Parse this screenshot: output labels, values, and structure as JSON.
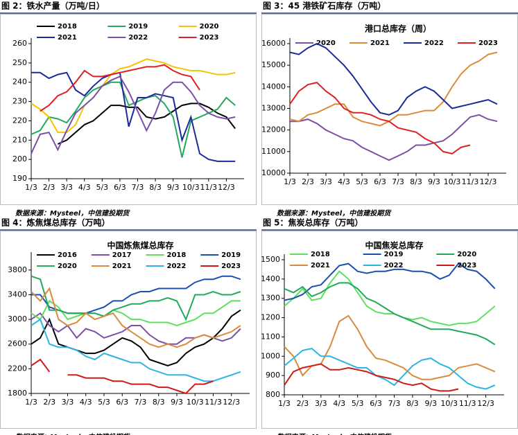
{
  "chart_data": [
    {
      "type": "line",
      "figure_label": "图 2：铁水产量（万吨/日）",
      "source": "数据来源：Mysteel，中信建投期货",
      "categories": [
        "1/3",
        null,
        "2/3",
        null,
        "3/3",
        null,
        "4/3",
        null,
        "5/3",
        null,
        "6/3",
        null,
        "7/3",
        null,
        "8/3",
        null,
        "9/3",
        null,
        "10/3",
        null,
        "11/3",
        null,
        "12/3",
        null
      ],
      "ylim": [
        190,
        260
      ],
      "yticks": [
        190,
        200,
        210,
        220,
        230,
        240,
        250,
        260
      ],
      "series": [
        {
          "name": "2018",
          "color": "#000000",
          "values": [
            null,
            null,
            null,
            208,
            210,
            214,
            218,
            220,
            224,
            228,
            228,
            227,
            227,
            222,
            221,
            222,
            225,
            228,
            229,
            229,
            227,
            224,
            222,
            216
          ]
        },
        {
          "name": "2019",
          "color": "#21a95c",
          "values": [
            213,
            215,
            222,
            221,
            219,
            225,
            232,
            236,
            238,
            240,
            240,
            228,
            230,
            232,
            233,
            229,
            222,
            201,
            220,
            222,
            224,
            226,
            232,
            228
          ]
        },
        {
          "name": "2020",
          "color": "#f5c400",
          "values": [
            229,
            226,
            222,
            214,
            214,
            218,
            228,
            232,
            238,
            244,
            247,
            248,
            250,
            252,
            251,
            250,
            248,
            247,
            246,
            246,
            245,
            244,
            244,
            245
          ]
        },
        {
          "name": "2021",
          "color": "#1a2a9a",
          "values": [
            245,
            245,
            242,
            244,
            245,
            236,
            233,
            238,
            242,
            244,
            245,
            217,
            232,
            232,
            234,
            233,
            232,
            210,
            222,
            203,
            200,
            199,
            199,
            199
          ]
        },
        {
          "name": "2022",
          "color": "#7b4fa8",
          "values": [
            203,
            213,
            214,
            205,
            215,
            224,
            228,
            232,
            238,
            241,
            243,
            235,
            225,
            215,
            224,
            236,
            240,
            240,
            235,
            228,
            224,
            222,
            221,
            222
          ]
        },
        {
          "name": "2023",
          "color": "#e02020",
          "values": [
            null,
            225,
            228,
            233,
            235,
            240,
            246,
            243,
            243,
            244,
            245,
            246,
            247,
            248,
            248,
            249,
            246,
            244,
            243,
            236,
            null,
            null,
            null,
            null
          ]
        }
      ]
    },
    {
      "type": "line",
      "figure_label": "图 3：45 港铁矿石库存（万吨）",
      "source": "数据来源：Mysteel，中信建投期货",
      "title": "港口总库存（周）",
      "categories": [
        "1/3",
        null,
        "2/3",
        null,
        "3/3",
        null,
        "4/3",
        null,
        "5/3",
        null,
        "6/3",
        null,
        "7/3",
        null,
        "8/3",
        null,
        "9/3",
        null,
        "10/3",
        null,
        "11/3",
        null,
        "12/3",
        null
      ],
      "ylim": [
        10000,
        16000
      ],
      "yticks": [
        10000,
        11000,
        12000,
        13000,
        14000,
        15000,
        16000
      ],
      "series": [
        {
          "name": "2020",
          "color": "#7b4fa8",
          "values": [
            12400,
            12400,
            12500,
            12300,
            12000,
            11800,
            11600,
            11500,
            11200,
            11000,
            10800,
            10600,
            10800,
            11000,
            11300,
            11300,
            11400,
            11500,
            11800,
            12200,
            12600,
            12700,
            12500,
            12400
          ]
        },
        {
          "name": "2021",
          "color": "#d98b3a",
          "values": [
            12500,
            12400,
            12700,
            12800,
            13000,
            13200,
            13200,
            12600,
            12400,
            12300,
            12200,
            12400,
            12700,
            12700,
            12800,
            12900,
            12900,
            13300,
            14000,
            14600,
            15000,
            15200,
            15500,
            15600
          ]
        },
        {
          "name": "2022",
          "color": "#1a2a9a",
          "values": [
            15600,
            15500,
            15800,
            16000,
            15800,
            15400,
            15000,
            14500,
            13900,
            13300,
            12800,
            12700,
            12900,
            13500,
            13800,
            14000,
            13800,
            13400,
            13000,
            13100,
            13200,
            13300,
            13400,
            13200
          ]
        },
        {
          "name": "2023",
          "color": "#e02020",
          "values": [
            13200,
            13800,
            14100,
            14200,
            13800,
            13500,
            13000,
            12800,
            12800,
            12700,
            12500,
            12400,
            12100,
            12000,
            11900,
            11600,
            11400,
            11000,
            10900,
            11200,
            11300,
            null,
            null,
            null
          ]
        }
      ]
    },
    {
      "type": "line",
      "figure_label": "图 4：炼焦煤总库存（万吨）",
      "source": "数据来源：Mysteel，中信建投期货",
      "title": "中国炼焦煤总库存",
      "categories": [
        "1/3",
        null,
        "2/3",
        null,
        "3/3",
        null,
        "4/3",
        null,
        "5/3",
        null,
        "6/3",
        null,
        "7/3",
        null,
        "8/3",
        null,
        "9/3",
        null,
        "10/3",
        null,
        "11/3",
        null,
        "12/3",
        null
      ],
      "ylim": [
        1800,
        4000
      ],
      "yticks": [
        1800,
        2200,
        2600,
        3000,
        3400,
        3800
      ],
      "series": [
        {
          "name": "2016",
          "color": "#000000",
          "values": [
            2600,
            2700,
            3000,
            2600,
            2550,
            2500,
            2450,
            2450,
            2500,
            2600,
            2700,
            2650,
            2550,
            2350,
            2300,
            2250,
            2300,
            2450,
            2550,
            2600,
            2700,
            2850,
            3050,
            3150
          ]
        },
        {
          "name": "2017",
          "color": "#7b4fa8",
          "values": [
            3000,
            3100,
            2900,
            2800,
            2900,
            2700,
            2850,
            2800,
            2700,
            2750,
            2800,
            2900,
            2900,
            2750,
            2650,
            2600,
            2600,
            2700,
            2700,
            2750,
            2700,
            2650,
            2700,
            2850
          ]
        },
        {
          "name": "2018",
          "color": "#5ee05e",
          "values": [
            3100,
            3000,
            3300,
            3200,
            3000,
            3050,
            3100,
            3100,
            3050,
            3150,
            3100,
            3000,
            3000,
            2950,
            2950,
            2950,
            2900,
            2950,
            3000,
            3100,
            3100,
            3200,
            3300,
            3300
          ]
        },
        {
          "name": "2019",
          "color": "#1a4fb0",
          "values": [
            3400,
            3400,
            3200,
            3150,
            3100,
            3100,
            3100,
            3150,
            3200,
            3300,
            3300,
            3400,
            3450,
            3450,
            3500,
            3500,
            3500,
            3500,
            3600,
            3650,
            3650,
            3700,
            3700,
            3650
          ]
        },
        {
          "name": "2020",
          "color": "#21a95c",
          "values": [
            3700,
            3650,
            3150,
            3150,
            3100,
            3100,
            3100,
            3100,
            3050,
            3150,
            3200,
            3250,
            3250,
            3300,
            3300,
            3350,
            3300,
            3000,
            3400,
            3400,
            3450,
            3400,
            3400,
            3450
          ]
        },
        {
          "name": "2021",
          "color": "#d98b3a",
          "values": [
            3450,
            3300,
            3500,
            3000,
            2900,
            2950,
            3100,
            3000,
            3050,
            3100,
            2900,
            2800,
            2700,
            2600,
            2550,
            2600,
            2550,
            2600,
            2700,
            2750,
            2700,
            2750,
            2800,
            2900
          ]
        },
        {
          "name": "2022",
          "color": "#2bb5e0",
          "values": [
            2900,
            3000,
            2600,
            2550,
            2550,
            2500,
            2400,
            2350,
            2450,
            2400,
            2350,
            2300,
            2300,
            2200,
            2150,
            2100,
            2100,
            2100,
            2050,
            2000,
            2000,
            2050,
            2100,
            2150
          ]
        },
        {
          "name": "2023",
          "color": "#d01818",
          "values": [
            2250,
            2350,
            2150,
            null,
            2100,
            2100,
            2050,
            2050,
            2050,
            2000,
            2000,
            1950,
            1950,
            1950,
            1900,
            1900,
            1850,
            1800,
            1950,
            1950,
            2000,
            null,
            null,
            null
          ]
        }
      ]
    },
    {
      "type": "line",
      "figure_label": "图 5：焦炭总库存（万吨）",
      "source": "数据来源：Mysteel，中信建投期货",
      "title": "中国焦炭总库存",
      "categories": [
        "1/3",
        null,
        "2/3",
        null,
        "3/3",
        null,
        "4/3",
        null,
        "5/3",
        null,
        "6/3",
        null,
        "7/3",
        null,
        "8/3",
        null,
        "9/3",
        null,
        "10/3",
        null,
        "11/3",
        null,
        "12/3",
        null
      ],
      "ylim": [
        800,
        1500
      ],
      "yticks": [
        800,
        900,
        1000,
        1100,
        1200,
        1300,
        1400,
        1500
      ],
      "series": [
        {
          "name": "2018",
          "color": "#5ee05e",
          "values": [
            1260,
            1300,
            1350,
            1290,
            1300,
            1380,
            1440,
            1400,
            1330,
            1260,
            1230,
            1220,
            1220,
            1200,
            1190,
            1200,
            1180,
            1170,
            1160,
            1170,
            1170,
            1180,
            1220,
            1260
          ]
        },
        {
          "name": "2019",
          "color": "#1a4fb0",
          "values": [
            1290,
            1300,
            1320,
            1360,
            1370,
            1420,
            1470,
            1480,
            1440,
            1430,
            1440,
            1440,
            1450,
            1450,
            1440,
            1440,
            1430,
            1400,
            1420,
            1480,
            1450,
            1440,
            1400,
            1350
          ]
        },
        {
          "name": "2020",
          "color": "#21a95c",
          "values": [
            1350,
            1330,
            1360,
            1310,
            1330,
            1360,
            1380,
            1380,
            1350,
            1300,
            1280,
            1250,
            1220,
            1200,
            1180,
            1160,
            1140,
            1140,
            1140,
            1130,
            1120,
            1110,
            1090,
            1060
          ]
        },
        {
          "name": "2021",
          "color": "#d98b3a",
          "values": [
            1050,
            1000,
            900,
            950,
            960,
            1050,
            1180,
            1210,
            1140,
            1050,
            990,
            980,
            960,
            940,
            900,
            880,
            880,
            890,
            900,
            940,
            950,
            960,
            940,
            920
          ]
        },
        {
          "name": "2022",
          "color": "#2bb5e0",
          "values": [
            950,
            990,
            1030,
            1040,
            1000,
            1000,
            980,
            960,
            940,
            940,
            900,
            880,
            850,
            900,
            950,
            980,
            990,
            960,
            940,
            900,
            860,
            840,
            830,
            850
          ]
        },
        {
          "name": "2023",
          "color": "#d01818",
          "values": [
            850,
            920,
            940,
            950,
            960,
            930,
            930,
            940,
            930,
            920,
            900,
            890,
            880,
            860,
            850,
            860,
            830,
            820,
            820,
            830,
            null,
            null,
            null,
            null
          ]
        }
      ]
    }
  ]
}
